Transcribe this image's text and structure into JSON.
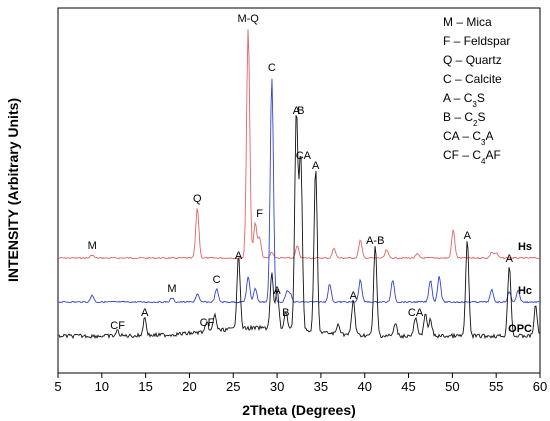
{
  "chart_data": {
    "type": "line",
    "xlabel": "2Theta (Degrees)",
    "ylabel": "INTENSITY (Arbitrary Units)",
    "xlim": [
      5,
      60
    ],
    "xticks": [
      5,
      10,
      15,
      20,
      25,
      30,
      35,
      40,
      45,
      50,
      55,
      60
    ],
    "series": [
      {
        "name": "Hs",
        "color": "#e06666",
        "baseline": 258,
        "peaks": [
          [
            8.9,
            3
          ],
          [
            20.9,
            50
          ],
          [
            26.7,
            230
          ],
          [
            27.5,
            35
          ],
          [
            28.0,
            20
          ],
          [
            29.4,
            6
          ],
          [
            32.3,
            12
          ],
          [
            36.5,
            10
          ],
          [
            39.5,
            18
          ],
          [
            42.5,
            8
          ],
          [
            46.0,
            4
          ],
          [
            50.1,
            28
          ],
          [
            54.5,
            6
          ],
          [
            55.0,
            5
          ]
        ]
      },
      {
        "name": "Hc",
        "color": "#3344cc",
        "baseline": 302,
        "peaks": [
          [
            8.9,
            7
          ],
          [
            18.0,
            4
          ],
          [
            20.9,
            8
          ],
          [
            23.1,
            13
          ],
          [
            26.7,
            25
          ],
          [
            27.5,
            14
          ],
          [
            29.4,
            225
          ],
          [
            31.1,
            10
          ],
          [
            31.5,
            8
          ],
          [
            36.0,
            18
          ],
          [
            39.5,
            22
          ],
          [
            43.2,
            22
          ],
          [
            47.5,
            22
          ],
          [
            48.5,
            26
          ],
          [
            54.5,
            12
          ],
          [
            56.5,
            10
          ],
          [
            57.5,
            12
          ]
        ]
      },
      {
        "name": "OPC",
        "color": "#111111",
        "baseline": 340,
        "peaks": [
          [
            11.8,
            5
          ],
          [
            14.9,
            18
          ],
          [
            22.0,
            8
          ],
          [
            22.9,
            16
          ],
          [
            25.6,
            75
          ],
          [
            29.4,
            55
          ],
          [
            30.0,
            40
          ],
          [
            31.0,
            18
          ],
          [
            32.2,
            220
          ],
          [
            32.7,
            175
          ],
          [
            34.4,
            165
          ],
          [
            37.0,
            10
          ],
          [
            38.7,
            35
          ],
          [
            41.2,
            90
          ],
          [
            43.5,
            12
          ],
          [
            45.8,
            18
          ],
          [
            46.9,
            22
          ],
          [
            47.5,
            16
          ],
          [
            51.7,
            95
          ],
          [
            56.5,
            72
          ],
          [
            59.5,
            30
          ]
        ]
      }
    ],
    "peak_labels": [
      {
        "text": "M-Q",
        "x": 26.7,
        "series": "Hs"
      },
      {
        "text": "Q",
        "x": 20.9,
        "series": "Hs"
      },
      {
        "text": "F",
        "x": 28.0,
        "series": "Hs"
      },
      {
        "text": "M",
        "x": 8.9,
        "series": "Hs"
      },
      {
        "text": "C",
        "x": 29.4,
        "series": "Hc"
      },
      {
        "text": "C",
        "x": 23.1,
        "series": "Hc"
      },
      {
        "text": "M",
        "x": 18.0,
        "series": "Hc"
      },
      {
        "text": "A",
        "x": 25.6,
        "series": "OPC"
      },
      {
        "text": "A",
        "x": 30.0,
        "series": "OPC"
      },
      {
        "text": "A",
        "x": 32.2,
        "series": "OPC"
      },
      {
        "text": "B",
        "x": 32.7,
        "series": "OPC"
      },
      {
        "text": "A",
        "x": 34.4,
        "series": "OPC"
      },
      {
        "text": "CA",
        "x": 33.0,
        "series": "OPC"
      },
      {
        "text": "A-B",
        "x": 41.2,
        "series": "OPC"
      },
      {
        "text": "A",
        "x": 51.7,
        "series": "OPC"
      },
      {
        "text": "A",
        "x": 38.7,
        "series": "OPC"
      },
      {
        "text": "A",
        "x": 14.9,
        "series": "OPC"
      },
      {
        "text": "CF",
        "x": 11.8,
        "series": "OPC"
      },
      {
        "text": "CF",
        "x": 22.0,
        "series": "OPC"
      },
      {
        "text": "B",
        "x": 31.0,
        "series": "OPC"
      },
      {
        "text": "CA",
        "x": 45.8,
        "series": "OPC"
      },
      {
        "text": "A",
        "x": 56.5,
        "series": "OPC"
      }
    ],
    "legend_position": "top-right",
    "legend": [
      {
        "abbr": "M",
        "name": "Mica"
      },
      {
        "abbr": "F",
        "name": "Feldspar"
      },
      {
        "abbr": "Q",
        "name": "Quartz"
      },
      {
        "abbr": "C",
        "name": "Calcite"
      },
      {
        "abbr": "A",
        "name": "C3S"
      },
      {
        "abbr": "B",
        "name": "C2S"
      },
      {
        "abbr": "CA",
        "name": "C3A"
      },
      {
        "abbr": "CF",
        "name": "C4AF"
      }
    ],
    "grid": false
  }
}
